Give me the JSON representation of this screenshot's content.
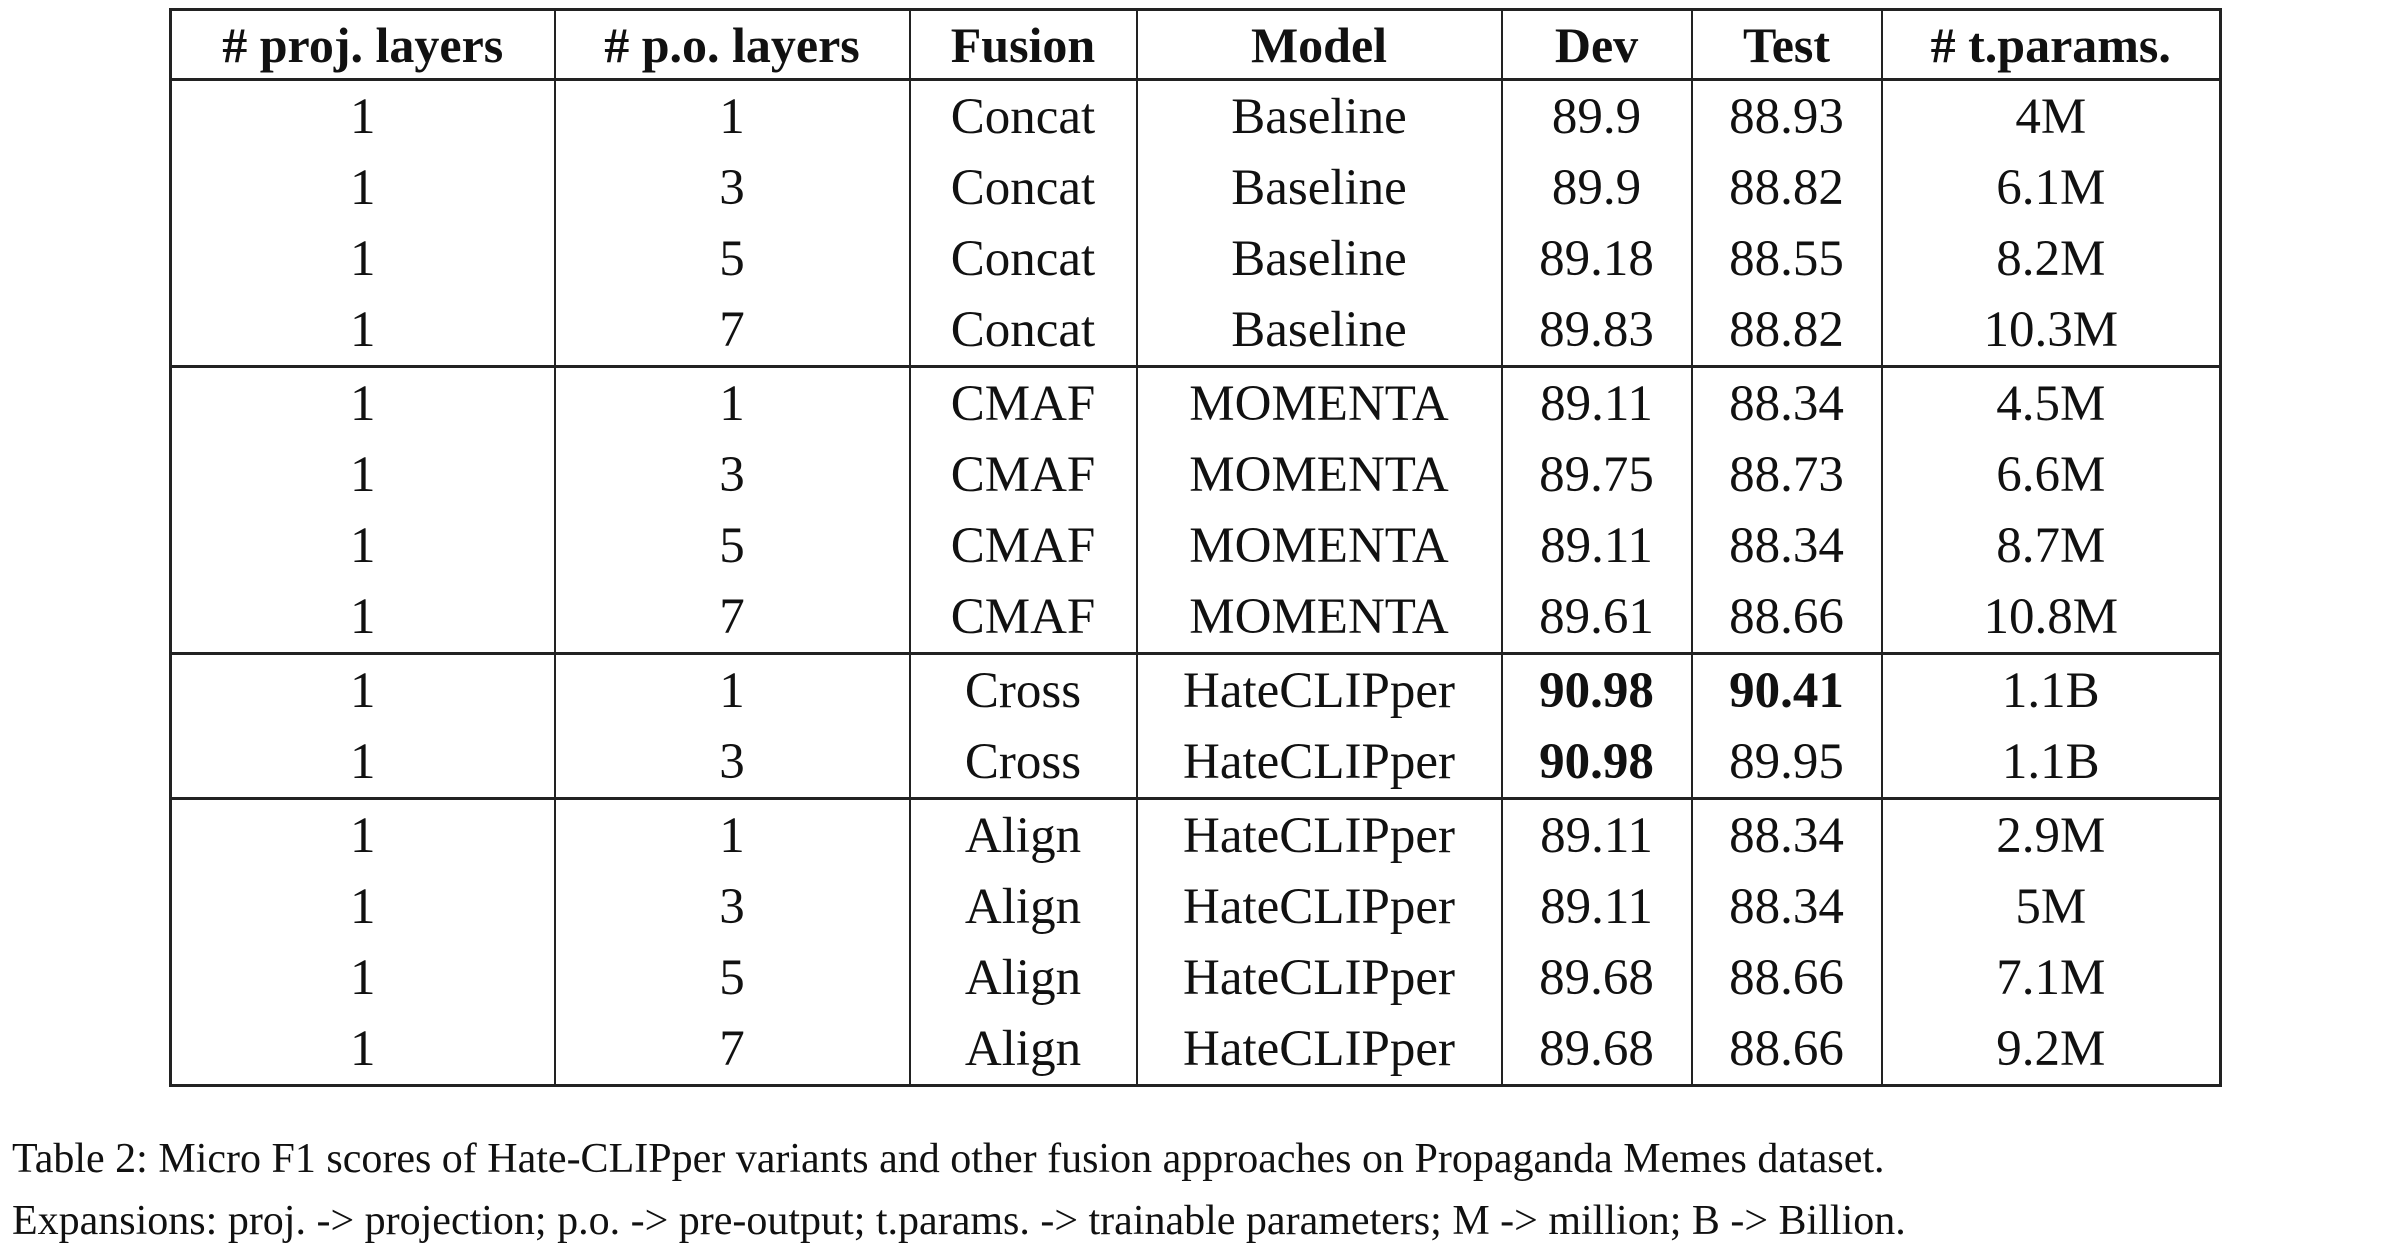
{
  "table": {
    "headers": [
      "# proj. layers",
      "# p.o. layers",
      "Fusion",
      "Model",
      "Dev",
      "Test",
      "# t.params."
    ],
    "groups": [
      {
        "rows": [
          {
            "cells": [
              "1",
              "1",
              "Concat",
              "Baseline",
              "89.9",
              "88.93",
              "4M"
            ],
            "bold": []
          },
          {
            "cells": [
              "1",
              "3",
              "Concat",
              "Baseline",
              "89.9",
              "88.82",
              "6.1M"
            ],
            "bold": []
          },
          {
            "cells": [
              "1",
              "5",
              "Concat",
              "Baseline",
              "89.18",
              "88.55",
              "8.2M"
            ],
            "bold": []
          },
          {
            "cells": [
              "1",
              "7",
              "Concat",
              "Baseline",
              "89.83",
              "88.82",
              "10.3M"
            ],
            "bold": []
          }
        ]
      },
      {
        "rows": [
          {
            "cells": [
              "1",
              "1",
              "CMAF",
              "MOMENTA",
              "89.11",
              "88.34",
              "4.5M"
            ],
            "bold": []
          },
          {
            "cells": [
              "1",
              "3",
              "CMAF",
              "MOMENTA",
              "89.75",
              "88.73",
              "6.6M"
            ],
            "bold": []
          },
          {
            "cells": [
              "1",
              "5",
              "CMAF",
              "MOMENTA",
              "89.11",
              "88.34",
              "8.7M"
            ],
            "bold": []
          },
          {
            "cells": [
              "1",
              "7",
              "CMAF",
              "MOMENTA",
              "89.61",
              "88.66",
              "10.8M"
            ],
            "bold": []
          }
        ]
      },
      {
        "rows": [
          {
            "cells": [
              "1",
              "1",
              "Cross",
              "HateCLIPper",
              "90.98",
              "90.41",
              "1.1B"
            ],
            "bold": [
              4,
              5
            ]
          },
          {
            "cells": [
              "1",
              "3",
              "Cross",
              "HateCLIPper",
              "90.98",
              "89.95",
              "1.1B"
            ],
            "bold": [
              4
            ]
          }
        ]
      },
      {
        "rows": [
          {
            "cells": [
              "1",
              "1",
              "Align",
              "HateCLIPper",
              "89.11",
              "88.34",
              "2.9M"
            ],
            "bold": []
          },
          {
            "cells": [
              "1",
              "3",
              "Align",
              "HateCLIPper",
              "89.11",
              "88.34",
              "5M"
            ],
            "bold": []
          },
          {
            "cells": [
              "1",
              "5",
              "Align",
              "HateCLIPper",
              "89.68",
              "88.66",
              "7.1M"
            ],
            "bold": []
          },
          {
            "cells": [
              "1",
              "7",
              "Align",
              "HateCLIPper",
              "89.68",
              "88.66",
              "9.2M"
            ],
            "bold": []
          }
        ]
      }
    ]
  },
  "caption": {
    "line1": "Table 2: Micro F1 scores of Hate-CLIPper variants and other fusion approaches on Propaganda Memes dataset.",
    "line2": "Expansions: proj. -> projection; p.o. -> pre-output; t.params. -> trainable parameters; M -> million; B -> Billion."
  }
}
